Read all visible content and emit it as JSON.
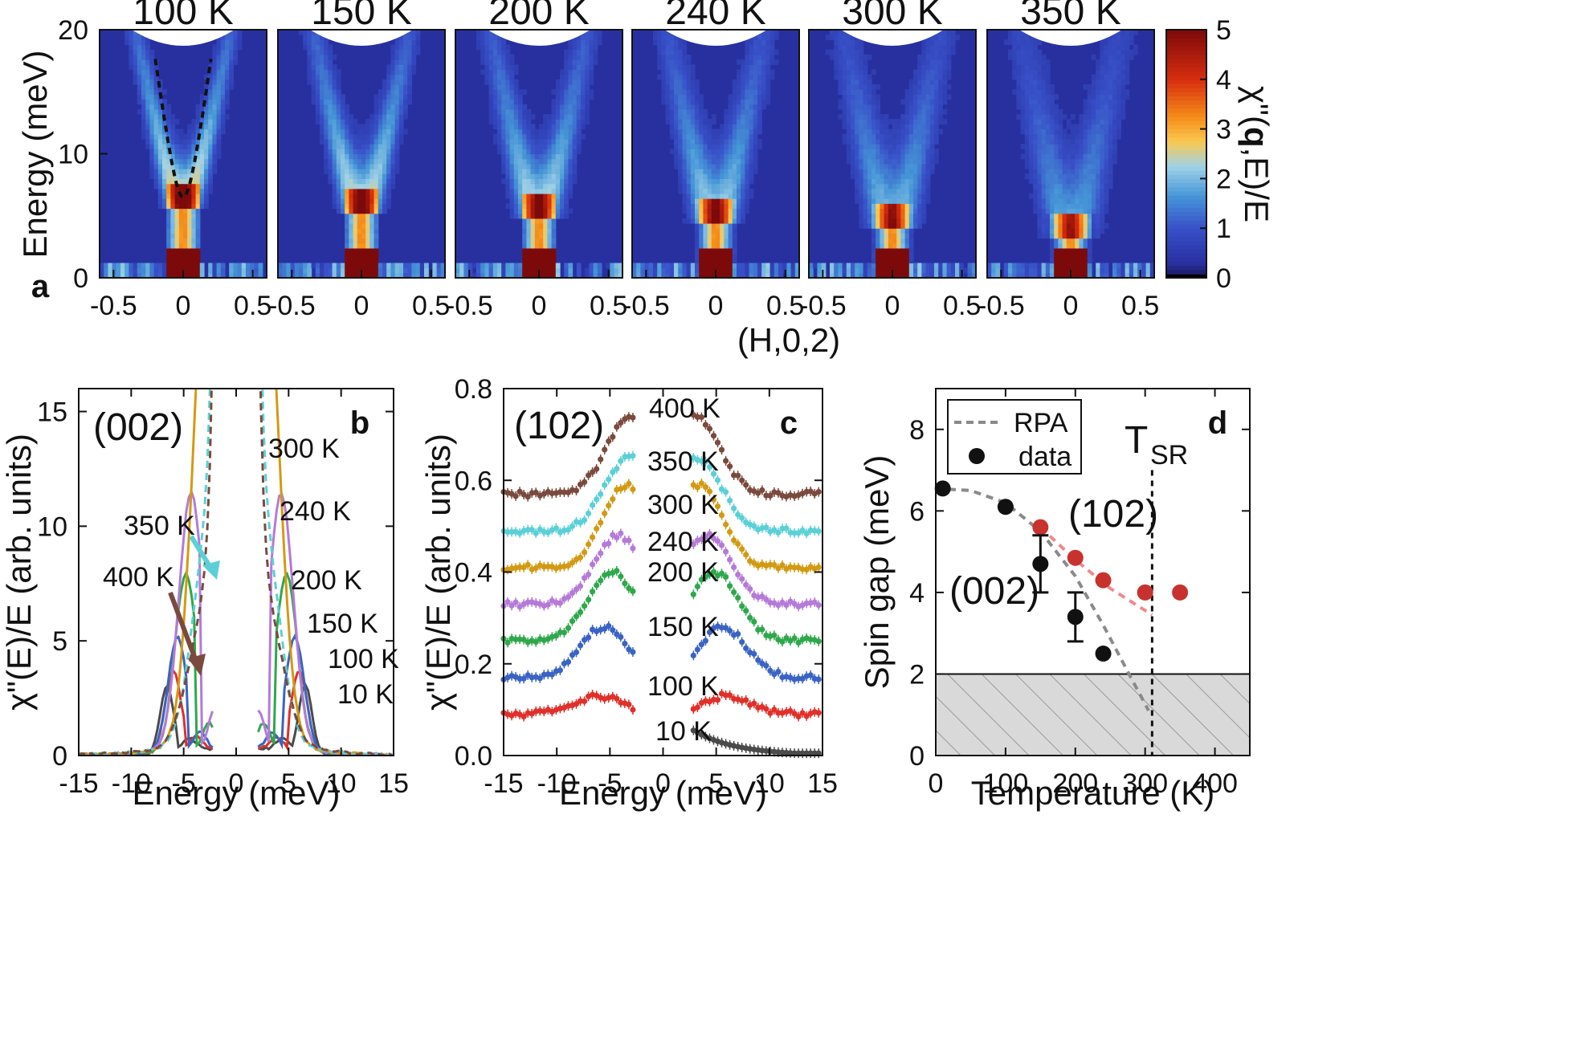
{
  "colors": {
    "map_bg": "#2a3aa8",
    "series_10K": "#4a4a4a",
    "series_100K": "#e0302a",
    "series_150K": "#3b63c4",
    "series_200K": "#2ea84b",
    "series_240K": "#b57ad8",
    "series_300K": "#d29a14",
    "series_350K": "#5bd0d6",
    "series_400K": "#7a4a3e",
    "rpa_line": "#8a8a8a",
    "red_102": "#c8322e"
  },
  "chart_data": [
    {
      "id": "a",
      "type": "heatmap",
      "panel_letter": "a",
      "titles": [
        "100 K",
        "150 K",
        "200 K",
        "240 K",
        "300 K",
        "350 K"
      ],
      "xlabel": "(H,0,2)",
      "ylabel": "Energy (meV)",
      "x_ticks": [
        "-0.5",
        "0",
        "0.5"
      ],
      "xlim": [
        -0.6,
        0.6
      ],
      "y_ticks": [
        "0",
        "10",
        "20"
      ],
      "ylim": [
        0,
        20
      ],
      "gap_energy_meV": [
        6.5,
        6.0,
        5.7,
        5.2,
        4.8,
        4.0
      ],
      "colorbar": {
        "label_parts": [
          "χ\"(",
          "q",
          ",E)/E"
        ],
        "ticks": [
          "0",
          "1",
          "2",
          "3",
          "4",
          "5"
        ],
        "range": [
          0,
          5
        ]
      }
    },
    {
      "id": "b",
      "type": "line",
      "panel_letter": "b",
      "inset_label": "(002)",
      "xlabel": "Energy (meV)",
      "ylabel": "χ\"(E)/E (arb. units)",
      "xlim": [
        -15,
        15
      ],
      "ylim": [
        0,
        16
      ],
      "x_ticks": [
        "-15",
        "-10",
        "-5",
        "0",
        "5",
        "10",
        "15"
      ],
      "y_ticks": [
        "0",
        "5",
        "10",
        "15"
      ],
      "series": [
        {
          "name": "10 K",
          "gap": 6.6,
          "peak": 3.0,
          "tail": 0.05,
          "dashed": false
        },
        {
          "name": "100 K",
          "gap": 6.0,
          "peak": 3.6,
          "tail": 0.12,
          "dashed": false
        },
        {
          "name": "150 K",
          "gap": 5.6,
          "peak": 5.0,
          "tail": 0.2,
          "dashed": false
        },
        {
          "name": "200 K",
          "gap": 4.8,
          "peak": 7.6,
          "tail": 0.35,
          "dashed": false
        },
        {
          "name": "240 K",
          "gap": 4.3,
          "peak": 11.0,
          "tail": 0.45,
          "dashed": false
        },
        {
          "name": "300 K",
          "gap": 3.0,
          "peak": 16.0,
          "tail": 0.6,
          "dashed": false
        },
        {
          "name": "350 K",
          "gap": 3.0,
          "peak": 6.5,
          "tail": 0.75,
          "dashed": true
        },
        {
          "name": "400 K",
          "gap": 3.2,
          "peak": 4.2,
          "tail": 0.8,
          "dashed": true
        }
      ],
      "annotations": [
        "350 K",
        "400 K"
      ]
    },
    {
      "id": "c",
      "type": "scatter",
      "panel_letter": "c",
      "inset_label": "(102)",
      "xlabel": "Energy (meV)",
      "ylabel": "χ\"(E)/E (arb. units)",
      "xlim": [
        -15,
        15
      ],
      "ylim": [
        0,
        0.8
      ],
      "x_ticks": [
        "-15",
        "-10",
        "-5",
        "0",
        "5",
        "10",
        "15"
      ],
      "y_ticks": [
        "0.0",
        "0.2",
        "0.4",
        "0.6",
        "0.8"
      ],
      "series": [
        {
          "name": "400 K",
          "offset": 0.57,
          "peak": 0.17,
          "peakE": 3.0
        },
        {
          "name": "350 K",
          "offset": 0.49,
          "peak": 0.16,
          "peakE": 3.2
        },
        {
          "name": "300 K",
          "offset": 0.41,
          "peak": 0.18,
          "peakE": 3.4
        },
        {
          "name": "240 K",
          "offset": 0.33,
          "peak": 0.15,
          "peakE": 4.2
        },
        {
          "name": "200 K",
          "offset": 0.25,
          "peak": 0.15,
          "peakE": 4.8
        },
        {
          "name": "150 K",
          "offset": 0.17,
          "peak": 0.11,
          "peakE": 5.6
        },
        {
          "name": "100 K",
          "offset": 0.09,
          "peak": 0.04,
          "peakE": 6.0
        },
        {
          "name": "10 K",
          "offset": 0.0,
          "peak": 0.06,
          "peakE": 4.0
        }
      ]
    },
    {
      "id": "d",
      "type": "scatter",
      "panel_letter": "d",
      "xlabel": "Temperature (K)",
      "ylabel": "Spin gap (meV)",
      "xlim": [
        0,
        450
      ],
      "ylim": [
        0,
        9
      ],
      "x_ticks": [
        "0",
        "100",
        "200",
        "300",
        "400"
      ],
      "y_ticks": [
        "0",
        "2",
        "4",
        "6",
        "8"
      ],
      "data_002": [
        {
          "T": 10,
          "gap": 6.55,
          "err": 0
        },
        {
          "T": 100,
          "gap": 6.1,
          "err": 0
        },
        {
          "T": 150,
          "gap": 4.7,
          "err": 0.7
        },
        {
          "T": 200,
          "gap": 3.4,
          "err": 0.6
        },
        {
          "T": 240,
          "gap": 2.5,
          "err": 0
        }
      ],
      "data_102": [
        {
          "T": 150,
          "gap": 5.6
        },
        {
          "T": 200,
          "gap": 4.85
        },
        {
          "T": 240,
          "gap": 4.3
        },
        {
          "T": 300,
          "gap": 4.0
        },
        {
          "T": 350,
          "gap": 4.0
        }
      ],
      "rpa_curve": [
        [
          0,
          6.55
        ],
        [
          50,
          6.5
        ],
        [
          100,
          6.2
        ],
        [
          150,
          5.5
        ],
        [
          200,
          4.4
        ],
        [
          240,
          3.2
        ],
        [
          280,
          1.9
        ],
        [
          305,
          1.1
        ]
      ],
      "fit_102": [
        [
          150,
          5.6
        ],
        [
          200,
          4.8
        ],
        [
          250,
          4.1
        ],
        [
          310,
          3.45
        ]
      ],
      "shaded_below": 2,
      "tsr": 310,
      "legend": [
        "RPA",
        "data"
      ],
      "labels": {
        "l002": "(002)",
        "l102": "(102)",
        "tsr_main": "T",
        "tsr_sub": "SR"
      }
    }
  ]
}
